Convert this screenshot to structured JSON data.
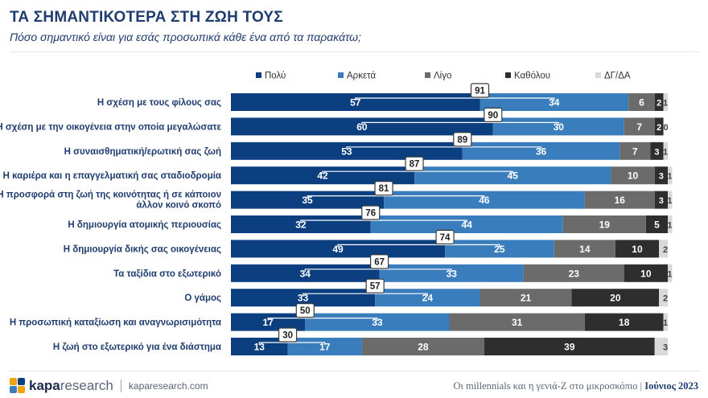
{
  "header": {
    "title": "ΤΑ ΣΗΜΑΝΤΙΚΟΤΕΡΑ ΣΤΗ ΖΩΗ ΤΟΥΣ",
    "subtitle": "Πόσο σημαντικό είναι για εσάς προσωπικά κάθε ένα από τα παρακάτω;"
  },
  "footer": {
    "brand_main": "kapa",
    "brand_rest": "research",
    "site": "kaparesearch.com",
    "study": "Οι millennials και η γενιά-Ζ στο μικροσκόπιο |",
    "date": "Ιούνιος 2023"
  },
  "colors": {
    "polu": "#0b3f80",
    "arketa": "#3a7dbd",
    "ligo": "#6b6b6b",
    "katholou": "#2e2e2e",
    "dgda": "#d9d9d9",
    "text_dark": "#1f3c6e"
  },
  "chart_data": {
    "type": "bar",
    "orientation": "horizontal",
    "stacked": true,
    "legend_position": "top",
    "xlim": [
      0,
      100
    ],
    "categories": [
      "Η σχέση με τους φίλους σας",
      "Η σχέση με την οικογένεια στην οποία μεγαλώσατε",
      "Η συναισθηματική/ερωτική σας ζωή",
      "Η καριέρα και η επαγγελματική σας σταδιοδρομία",
      "Η προσφορά στη ζωή της κοινότητας ή σε κάποιον άλλον κοινό σκοπό",
      "Η δημιουργία ατομικής περιουσίας",
      "Η δημιουργία δικής σας οικογένειας",
      "Τα ταξίδια στο εξωτερικό",
      "Ο γάμος",
      "Η προσωπική καταξίωση και αναγνωρισιμότητα",
      "Η ζωή στο εξωτερικό για ένα διάστημα"
    ],
    "category_lines": [
      [
        "Η σχέση με τους φίλους σας"
      ],
      [
        "Η σχέση με την οικογένεια στην οποία μεγαλώσατε"
      ],
      [
        "Η συναισθηματική/ερωτική σας ζωή"
      ],
      [
        "Η καριέρα και η επαγγελματική σας σταδιοδρομία"
      ],
      [
        "Η προσφορά στη ζωή της κοινότητας ή σε κάποιον",
        "άλλον κοινό σκοπό"
      ],
      [
        "Η δημιουργία ατομικής περιουσίας"
      ],
      [
        "Η δημιουργία δικής σας οικογένειας"
      ],
      [
        "Τα ταξίδια στο εξωτερικό"
      ],
      [
        "Ο γάμος"
      ],
      [
        "Η προσωπική καταξίωση και αναγνωρισιμότητα"
      ],
      [
        "Η ζωή στο εξωτερικό για ένα διάστημα"
      ]
    ],
    "series": [
      {
        "name": "Πολύ",
        "color": "#0b3f80",
        "label_color": "#ffffff",
        "values": [
          57,
          60,
          53,
          42,
          35,
          32,
          49,
          34,
          33,
          17,
          13
        ]
      },
      {
        "name": "Αρκετά",
        "color": "#3a7dbd",
        "label_color": "#ffffff",
        "values": [
          34,
          30,
          36,
          45,
          46,
          44,
          25,
          33,
          24,
          33,
          17
        ]
      },
      {
        "name": "Λίγο",
        "color": "#6b6b6b",
        "label_color": "#ffffff",
        "values": [
          6,
          7,
          7,
          10,
          16,
          19,
          14,
          23,
          21,
          31,
          28
        ]
      },
      {
        "name": "Καθόλου",
        "color": "#2e2e2e",
        "label_color": "#ffffff",
        "values": [
          2,
          2,
          3,
          3,
          3,
          5,
          10,
          10,
          20,
          18,
          39
        ]
      },
      {
        "name": "ΔΓ/ΔΑ",
        "color": "#d9d9d9",
        "label_color": "#444444",
        "values": [
          1,
          0,
          1,
          1,
          1,
          1,
          2,
          1,
          2,
          1,
          3
        ]
      }
    ],
    "totals": {
      "label": "Πολύ + Αρκετά",
      "values": [
        91,
        90,
        89,
        87,
        81,
        76,
        74,
        67,
        57,
        50,
        30
      ]
    }
  }
}
